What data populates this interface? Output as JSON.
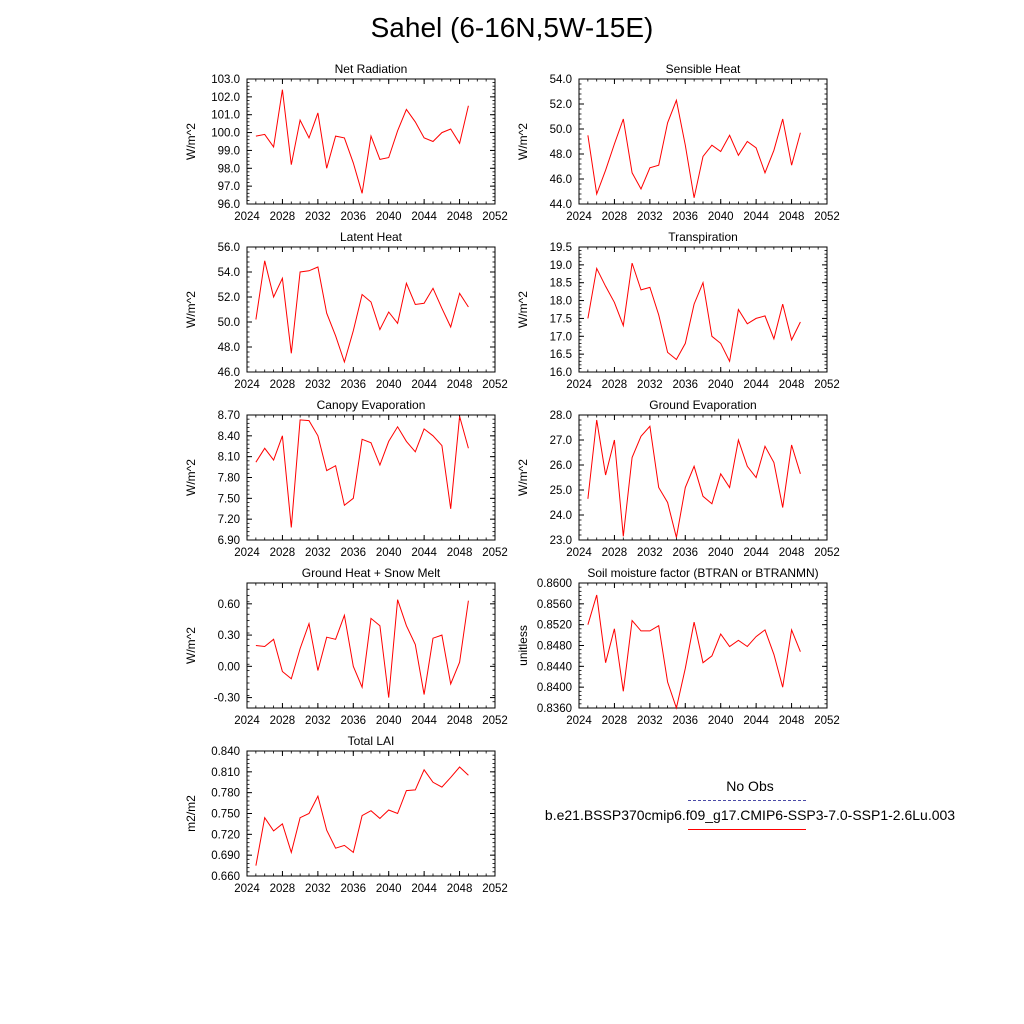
{
  "title": "Sahel (6-16N,5W-15E)",
  "colors": {
    "series": "#ff0000",
    "obs": "#4a4aa8",
    "axis": "#000000"
  },
  "legend": {
    "obs_label": "No Obs",
    "model_label": "b.e21.BSSP370cmip6.f09_g17.CMIP6-SSP3-7.0-SSP1-2.6Lu.003"
  },
  "chart_data": [
    {
      "type": "line",
      "title": "Net Radiation",
      "ylabel": "W/m^2",
      "xlim": [
        2024,
        2052
      ],
      "xticks": [
        "2024",
        "2028",
        "2032",
        "2036",
        "2040",
        "2044",
        "2048",
        "2052"
      ],
      "ylim": [
        96.0,
        103.0
      ],
      "yticks": [
        "96.0",
        "97.0",
        "98.0",
        "99.0",
        "100.0",
        "101.0",
        "102.0",
        "103.0"
      ],
      "x": [
        2025,
        2026,
        2027,
        2028,
        2029,
        2030,
        2031,
        2032,
        2033,
        2034,
        2035,
        2036,
        2037,
        2038,
        2039,
        2040,
        2041,
        2042,
        2043,
        2044,
        2045,
        2046,
        2047,
        2048,
        2049
      ],
      "series": [
        {
          "values": [
            99.8,
            99.9,
            99.2,
            102.4,
            98.2,
            100.7,
            99.7,
            101.1,
            98.0,
            99.8,
            99.7,
            98.3,
            96.6,
            99.8,
            98.5,
            98.6,
            100.1,
            101.3,
            100.6,
            99.7,
            99.5,
            100.0,
            100.2,
            99.4,
            101.5
          ]
        }
      ]
    },
    {
      "type": "line",
      "title": "Sensible Heat",
      "ylabel": "W/m^2",
      "xlim": [
        2024,
        2052
      ],
      "xticks": [
        "2024",
        "2028",
        "2032",
        "2036",
        "2040",
        "2044",
        "2048",
        "2052"
      ],
      "ylim": [
        44.0,
        54.0
      ],
      "yticks": [
        "44.0",
        "46.0",
        "48.0",
        "50.0",
        "52.0",
        "54.0"
      ],
      "x": [
        2025,
        2026,
        2027,
        2028,
        2029,
        2030,
        2031,
        2032,
        2033,
        2034,
        2035,
        2036,
        2037,
        2038,
        2039,
        2040,
        2041,
        2042,
        2043,
        2044,
        2045,
        2046,
        2047,
        2048,
        2049
      ],
      "series": [
        {
          "values": [
            49.5,
            44.8,
            46.7,
            48.8,
            50.8,
            46.5,
            45.2,
            46.9,
            47.1,
            50.5,
            52.3,
            48.7,
            44.5,
            47.8,
            48.7,
            48.2,
            49.5,
            47.9,
            49.0,
            48.5,
            46.5,
            48.3,
            50.8,
            47.1,
            49.7
          ]
        }
      ]
    },
    {
      "type": "line",
      "title": "Latent Heat",
      "ylabel": "W/m^2",
      "xlim": [
        2024,
        2052
      ],
      "xticks": [
        "2024",
        "2028",
        "2032",
        "2036",
        "2040",
        "2044",
        "2048",
        "2052"
      ],
      "ylim": [
        46.0,
        56.0
      ],
      "yticks": [
        "46.0",
        "48.0",
        "50.0",
        "52.0",
        "54.0",
        "56.0"
      ],
      "x": [
        2025,
        2026,
        2027,
        2028,
        2029,
        2030,
        2031,
        2032,
        2033,
        2034,
        2035,
        2036,
        2037,
        2038,
        2039,
        2040,
        2041,
        2042,
        2043,
        2044,
        2045,
        2046,
        2047,
        2048,
        2049
      ],
      "series": [
        {
          "values": [
            50.2,
            54.9,
            52.0,
            53.5,
            47.5,
            54.0,
            54.1,
            54.4,
            50.7,
            48.9,
            46.8,
            49.3,
            52.2,
            51.6,
            49.4,
            50.8,
            49.9,
            53.1,
            51.4,
            51.5,
            52.7,
            51.1,
            49.6,
            52.3,
            51.2
          ]
        }
      ]
    },
    {
      "type": "line",
      "title": "Transpiration",
      "ylabel": "W/m^2",
      "xlim": [
        2024,
        2052
      ],
      "xticks": [
        "2024",
        "2028",
        "2032",
        "2036",
        "2040",
        "2044",
        "2048",
        "2052"
      ],
      "ylim": [
        16.0,
        19.5
      ],
      "yticks": [
        "16.0",
        "16.5",
        "17.0",
        "17.5",
        "18.0",
        "18.5",
        "19.0",
        "19.5"
      ],
      "x": [
        2025,
        2026,
        2027,
        2028,
        2029,
        2030,
        2031,
        2032,
        2033,
        2034,
        2035,
        2036,
        2037,
        2038,
        2039,
        2040,
        2041,
        2042,
        2043,
        2044,
        2045,
        2046,
        2047,
        2048,
        2049
      ],
      "series": [
        {
          "values": [
            17.5,
            18.9,
            18.4,
            17.95,
            17.3,
            19.05,
            18.3,
            18.37,
            17.6,
            16.55,
            16.35,
            16.8,
            17.9,
            18.5,
            17.0,
            16.8,
            16.3,
            17.75,
            17.35,
            17.5,
            17.57,
            16.93,
            17.9,
            16.9,
            17.4
          ]
        }
      ]
    },
    {
      "type": "line",
      "title": "Canopy Evaporation",
      "ylabel": "W/m^2",
      "xlim": [
        2024,
        2052
      ],
      "xticks": [
        "2024",
        "2028",
        "2032",
        "2036",
        "2040",
        "2044",
        "2048",
        "2052"
      ],
      "ylim": [
        6.9,
        8.7
      ],
      "yticks": [
        "6.90",
        "7.20",
        "7.50",
        "7.80",
        "8.10",
        "8.40",
        "8.70"
      ],
      "x": [
        2025,
        2026,
        2027,
        2028,
        2029,
        2030,
        2031,
        2032,
        2033,
        2034,
        2035,
        2036,
        2037,
        2038,
        2039,
        2040,
        2041,
        2042,
        2043,
        2044,
        2045,
        2046,
        2047,
        2048,
        2049
      ],
      "series": [
        {
          "values": [
            8.02,
            8.22,
            8.05,
            8.4,
            7.08,
            8.63,
            8.62,
            8.4,
            7.9,
            7.97,
            7.4,
            7.5,
            8.35,
            8.3,
            7.98,
            8.32,
            8.53,
            8.32,
            8.17,
            8.5,
            8.4,
            8.26,
            7.35,
            8.68,
            8.22
          ]
        }
      ]
    },
    {
      "type": "line",
      "title": "Ground Evaporation",
      "ylabel": "W/m^2",
      "xlim": [
        2024,
        2052
      ],
      "xticks": [
        "2024",
        "2028",
        "2032",
        "2036",
        "2040",
        "2044",
        "2048",
        "2052"
      ],
      "ylim": [
        23.0,
        28.0
      ],
      "yticks": [
        "23.0",
        "24.0",
        "25.0",
        "26.0",
        "27.0",
        "28.0"
      ],
      "x": [
        2025,
        2026,
        2027,
        2028,
        2029,
        2030,
        2031,
        2032,
        2033,
        2034,
        2035,
        2036,
        2037,
        2038,
        2039,
        2040,
        2041,
        2042,
        2043,
        2044,
        2045,
        2046,
        2047,
        2048,
        2049
      ],
      "series": [
        {
          "values": [
            24.65,
            27.8,
            25.6,
            27.0,
            23.15,
            26.3,
            27.15,
            27.55,
            25.1,
            24.5,
            23.1,
            25.1,
            25.95,
            24.75,
            24.45,
            25.65,
            25.1,
            27.0,
            25.95,
            25.5,
            26.75,
            26.1,
            24.3,
            26.8,
            25.65
          ]
        }
      ]
    },
    {
      "type": "line",
      "title": "Ground Heat + Snow Melt",
      "ylabel": "W/m^2",
      "xlim": [
        2024,
        2052
      ],
      "xticks": [
        "2024",
        "2028",
        "2032",
        "2036",
        "2040",
        "2044",
        "2048",
        "2052"
      ],
      "ylim": [
        -0.4,
        0.8
      ],
      "yticks": [
        "-0.30",
        "0.00",
        "0.30",
        "0.60"
      ],
      "x": [
        2025,
        2026,
        2027,
        2028,
        2029,
        2030,
        2031,
        2032,
        2033,
        2034,
        2035,
        2036,
        2037,
        2038,
        2039,
        2040,
        2041,
        2042,
        2043,
        2044,
        2045,
        2046,
        2047,
        2048,
        2049
      ],
      "series": [
        {
          "values": [
            0.2,
            0.19,
            0.26,
            -0.05,
            -0.12,
            0.17,
            0.41,
            -0.04,
            0.28,
            0.26,
            0.49,
            0.0,
            -0.2,
            0.46,
            0.39,
            -0.3,
            0.64,
            0.39,
            0.21,
            -0.27,
            0.27,
            0.3,
            -0.17,
            0.04,
            0.63
          ]
        }
      ]
    },
    {
      "type": "line",
      "title": "Soil moisture factor (BTRAN or BTRANMN)",
      "ylabel": "unitless",
      "xlim": [
        2024,
        2052
      ],
      "xticks": [
        "2024",
        "2028",
        "2032",
        "2036",
        "2040",
        "2044",
        "2048",
        "2052"
      ],
      "ylim": [
        0.836,
        0.86
      ],
      "yticks": [
        "0.8360",
        "0.8400",
        "0.8440",
        "0.8480",
        "0.8520",
        "0.8560",
        "0.8600"
      ],
      "x": [
        2025,
        2026,
        2027,
        2028,
        2029,
        2030,
        2031,
        2032,
        2033,
        2034,
        2035,
        2036,
        2037,
        2038,
        2039,
        2040,
        2041,
        2042,
        2043,
        2044,
        2045,
        2046,
        2047,
        2048,
        2049
      ],
      "series": [
        {
          "values": [
            0.852,
            0.8577,
            0.8447,
            0.8512,
            0.8392,
            0.8528,
            0.8508,
            0.8508,
            0.8518,
            0.841,
            0.836,
            0.8436,
            0.8525,
            0.8447,
            0.846,
            0.8502,
            0.8478,
            0.849,
            0.8478,
            0.8497,
            0.851,
            0.8463,
            0.84,
            0.851,
            0.8468
          ]
        }
      ]
    },
    {
      "type": "line",
      "title": "Total LAI",
      "ylabel": "m2/m2",
      "xlim": [
        2024,
        2052
      ],
      "xticks": [
        "2024",
        "2028",
        "2032",
        "2036",
        "2040",
        "2044",
        "2048",
        "2052"
      ],
      "ylim": [
        0.66,
        0.84
      ],
      "yticks": [
        "0.660",
        "0.690",
        "0.720",
        "0.750",
        "0.780",
        "0.810",
        "0.840"
      ],
      "x": [
        2025,
        2026,
        2027,
        2028,
        2029,
        2030,
        2031,
        2032,
        2033,
        2034,
        2035,
        2036,
        2037,
        2038,
        2039,
        2040,
        2041,
        2042,
        2043,
        2044,
        2045,
        2046,
        2047,
        2048,
        2049
      ],
      "series": [
        {
          "values": [
            0.675,
            0.744,
            0.725,
            0.735,
            0.694,
            0.744,
            0.75,
            0.775,
            0.726,
            0.7,
            0.704,
            0.694,
            0.747,
            0.754,
            0.743,
            0.755,
            0.75,
            0.783,
            0.784,
            0.813,
            0.795,
            0.788,
            0.802,
            0.817,
            0.805
          ]
        }
      ]
    }
  ]
}
